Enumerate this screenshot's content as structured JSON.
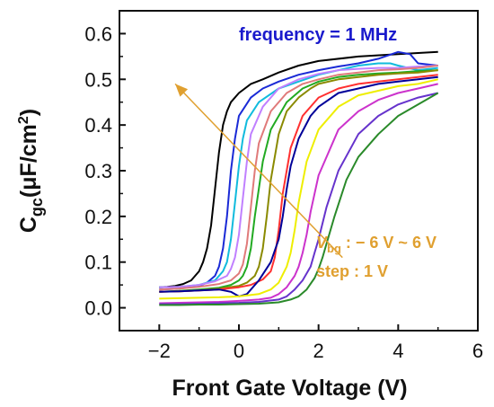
{
  "chart_data": {
    "type": "line",
    "xlabel": "Front Gate Voltage (V)",
    "ylabel_main": "C",
    "ylabel_sub": "gc",
    "ylabel_unit": "(μF/cm",
    "ylabel_sup": "2",
    "ylabel_close": ")",
    "xlim": [
      -3,
      6
    ],
    "ylim": [
      -0.05,
      0.65
    ],
    "xticks": [
      -2,
      0,
      2,
      4,
      6
    ],
    "xtick_labels": [
      "−2",
      "0",
      "2",
      "4",
      "6"
    ],
    "yticks": [
      0.0,
      0.1,
      0.2,
      0.3,
      0.4,
      0.5,
      0.6
    ],
    "ytick_labels": [
      "0.0",
      "0.1",
      "0.2",
      "0.3",
      "0.4",
      "0.5",
      "0.6"
    ],
    "grid": false,
    "legend_text": "frequency = 1 MHz",
    "legend_color": "#1a1acc",
    "annotation_line1_italic": "V",
    "annotation_line1_sub": "bg",
    "annotation_line1_rest": " : − 6 V ~ 6 V",
    "annotation_line2": "step : 1 V",
    "annotation_color": "#e0a030",
    "arrow_from": [
      2.6,
      0.11
    ],
    "arrow_to": [
      -1.6,
      0.49
    ],
    "series": [
      {
        "color": "#000000",
        "x": [
          -2,
          -1.8,
          -1.6,
          -1.4,
          -1.2,
          -1.0,
          -0.9,
          -0.8,
          -0.7,
          -0.6,
          -0.5,
          -0.4,
          -0.3,
          -0.2,
          0,
          0.3,
          0.6,
          1.0,
          1.5,
          2.0,
          3.0,
          4.0,
          5.0
        ],
        "y": [
          0.045,
          0.046,
          0.048,
          0.052,
          0.06,
          0.08,
          0.1,
          0.13,
          0.18,
          0.26,
          0.34,
          0.4,
          0.43,
          0.45,
          0.47,
          0.49,
          0.5,
          0.515,
          0.53,
          0.54,
          0.55,
          0.555,
          0.56
        ]
      },
      {
        "color": "#1a2ad6",
        "x": [
          -2,
          -1.5,
          -1.0,
          -0.8,
          -0.6,
          -0.5,
          -0.4,
          -0.3,
          -0.2,
          -0.1,
          0,
          0.3,
          0.6,
          1.0,
          1.5,
          2.0,
          2.5,
          3.0,
          3.5,
          4.0,
          4.3,
          4.5,
          5.0
        ],
        "y": [
          0.04,
          0.042,
          0.048,
          0.055,
          0.07,
          0.09,
          0.13,
          0.2,
          0.3,
          0.37,
          0.42,
          0.46,
          0.48,
          0.495,
          0.51,
          0.52,
          0.528,
          0.535,
          0.545,
          0.56,
          0.555,
          0.535,
          0.53
        ]
      },
      {
        "color": "#11bbdd",
        "x": [
          -2,
          -1.5,
          -1.0,
          -0.6,
          -0.4,
          -0.3,
          -0.2,
          -0.1,
          0,
          0.1,
          0.2,
          0.5,
          1.0,
          1.5,
          2.0,
          2.5,
          3.0,
          3.5,
          3.8,
          4.0,
          4.5,
          5.0
        ],
        "y": [
          0.045,
          0.046,
          0.05,
          0.06,
          0.08,
          0.1,
          0.15,
          0.23,
          0.31,
          0.37,
          0.41,
          0.45,
          0.48,
          0.495,
          0.51,
          0.52,
          0.53,
          0.535,
          0.535,
          0.53,
          0.52,
          0.525
        ]
      },
      {
        "color": "#c080ff",
        "x": [
          -2,
          -1.5,
          -1.0,
          -0.6,
          -0.3,
          -0.2,
          -0.1,
          0,
          0.1,
          0.2,
          0.3,
          0.6,
          1.0,
          1.5,
          2.0,
          2.5,
          3.0,
          3.5,
          4.0,
          4.5,
          5.0
        ],
        "y": [
          0.045,
          0.046,
          0.05,
          0.058,
          0.07,
          0.085,
          0.11,
          0.16,
          0.24,
          0.32,
          0.38,
          0.44,
          0.48,
          0.5,
          0.512,
          0.52,
          0.523,
          0.525,
          0.525,
          0.528,
          0.53
        ]
      },
      {
        "color": "#e07a7a",
        "x": [
          -2,
          -1.5,
          -1.0,
          -0.5,
          -0.2,
          0,
          0.1,
          0.2,
          0.3,
          0.4,
          0.5,
          0.8,
          1.2,
          1.6,
          2.0,
          2.5,
          3.0,
          3.5,
          4.0,
          4.5,
          5.0
        ],
        "y": [
          0.04,
          0.042,
          0.046,
          0.052,
          0.06,
          0.075,
          0.095,
          0.14,
          0.22,
          0.3,
          0.36,
          0.43,
          0.47,
          0.49,
          0.5,
          0.51,
          0.515,
          0.52,
          0.522,
          0.525,
          0.53
        ]
      },
      {
        "color": "#22aa22",
        "x": [
          -2,
          -1.5,
          -1.0,
          -0.5,
          -0.2,
          0,
          0.1,
          0.2,
          0.3,
          0.4,
          0.6,
          0.8,
          1.2,
          1.6,
          2.0,
          2.5,
          3.0,
          3.5,
          4.0,
          4.5,
          5.0
        ],
        "y": [
          0.035,
          0.037,
          0.04,
          0.044,
          0.05,
          0.06,
          0.07,
          0.09,
          0.13,
          0.2,
          0.32,
          0.39,
          0.45,
          0.48,
          0.495,
          0.505,
          0.51,
          0.513,
          0.515,
          0.518,
          0.52
        ]
      },
      {
        "color": "#8a8a00",
        "x": [
          -2,
          -1.5,
          -1.0,
          -0.5,
          0,
          0.2,
          0.4,
          0.5,
          0.6,
          0.7,
          0.8,
          1.0,
          1.2,
          1.5,
          1.8,
          2.0,
          2.5,
          3.0,
          3.5,
          4.0,
          4.5,
          5.0
        ],
        "y": [
          0.035,
          0.036,
          0.038,
          0.042,
          0.048,
          0.055,
          0.07,
          0.09,
          0.13,
          0.2,
          0.28,
          0.38,
          0.43,
          0.46,
          0.48,
          0.49,
          0.5,
          0.505,
          0.51,
          0.513,
          0.515,
          0.52
        ]
      },
      {
        "color": "#ff3030",
        "x": [
          -2,
          -1.5,
          -1.0,
          -0.5,
          0,
          0.3,
          0.6,
          0.8,
          0.9,
          1.0,
          1.1,
          1.3,
          1.6,
          2.0,
          2.5,
          3.0,
          3.5,
          4.0,
          4.5,
          5.0
        ],
        "y": [
          0.035,
          0.036,
          0.038,
          0.04,
          0.045,
          0.05,
          0.062,
          0.08,
          0.11,
          0.17,
          0.25,
          0.35,
          0.42,
          0.46,
          0.48,
          0.49,
          0.495,
          0.5,
          0.505,
          0.51
        ]
      },
      {
        "color": "#000099",
        "x": [
          -2,
          -1.5,
          -1.0,
          -0.5,
          -0.2,
          0,
          0.2,
          0.5,
          0.8,
          1.0,
          1.1,
          1.2,
          1.3,
          1.5,
          1.8,
          2.0,
          2.5,
          3.0,
          3.5,
          4.0,
          4.5,
          5.0
        ],
        "y": [
          0.035,
          0.036,
          0.038,
          0.04,
          0.035,
          0.025,
          0.03,
          0.06,
          0.1,
          0.15,
          0.2,
          0.26,
          0.31,
          0.37,
          0.42,
          0.44,
          0.47,
          0.48,
          0.49,
          0.495,
          0.5,
          0.505
        ]
      },
      {
        "color": "#eeee00",
        "x": [
          -2,
          -1.5,
          -1.0,
          -0.5,
          0,
          0.5,
          0.8,
          1.0,
          1.2,
          1.3,
          1.4,
          1.5,
          1.7,
          2.0,
          2.5,
          3.0,
          3.5,
          4.0,
          4.5,
          5.0
        ],
        "y": [
          0.02,
          0.021,
          0.022,
          0.023,
          0.025,
          0.03,
          0.04,
          0.055,
          0.09,
          0.12,
          0.17,
          0.23,
          0.32,
          0.39,
          0.44,
          0.465,
          0.475,
          0.485,
          0.49,
          0.5
        ]
      },
      {
        "color": "#cc33cc",
        "x": [
          -2,
          -1.5,
          -1.0,
          -0.5,
          0,
          0.5,
          0.8,
          1.0,
          1.2,
          1.4,
          1.5,
          1.6,
          1.7,
          1.8,
          2.0,
          2.5,
          3.0,
          3.5,
          4.0,
          4.5,
          5.0
        ],
        "y": [
          0.01,
          0.011,
          0.012,
          0.013,
          0.015,
          0.018,
          0.022,
          0.03,
          0.045,
          0.07,
          0.09,
          0.12,
          0.16,
          0.21,
          0.29,
          0.39,
          0.43,
          0.455,
          0.47,
          0.48,
          0.49
        ]
      },
      {
        "color": "#6633cc",
        "x": [
          -2,
          -1.5,
          -1.0,
          -0.5,
          0,
          0.5,
          1.0,
          1.2,
          1.4,
          1.6,
          1.8,
          1.9,
          2.0,
          2.2,
          2.5,
          3.0,
          3.5,
          4.0,
          4.5,
          5.0
        ],
        "y": [
          0.008,
          0.008,
          0.009,
          0.01,
          0.011,
          0.013,
          0.018,
          0.025,
          0.04,
          0.06,
          0.09,
          0.12,
          0.15,
          0.22,
          0.3,
          0.38,
          0.42,
          0.445,
          0.46,
          0.47
        ]
      },
      {
        "color": "#2a8a2a",
        "x": [
          -2,
          -1.5,
          -1.0,
          -0.5,
          0,
          0.5,
          1.0,
          1.3,
          1.5,
          1.7,
          1.9,
          2.0,
          2.1,
          2.2,
          2.4,
          2.7,
          3.0,
          3.5,
          4.0,
          4.5,
          5.0
        ],
        "y": [
          0.006,
          0.006,
          0.007,
          0.007,
          0.008,
          0.009,
          0.012,
          0.018,
          0.025,
          0.04,
          0.065,
          0.085,
          0.11,
          0.14,
          0.2,
          0.28,
          0.33,
          0.38,
          0.42,
          0.445,
          0.47
        ]
      }
    ]
  }
}
